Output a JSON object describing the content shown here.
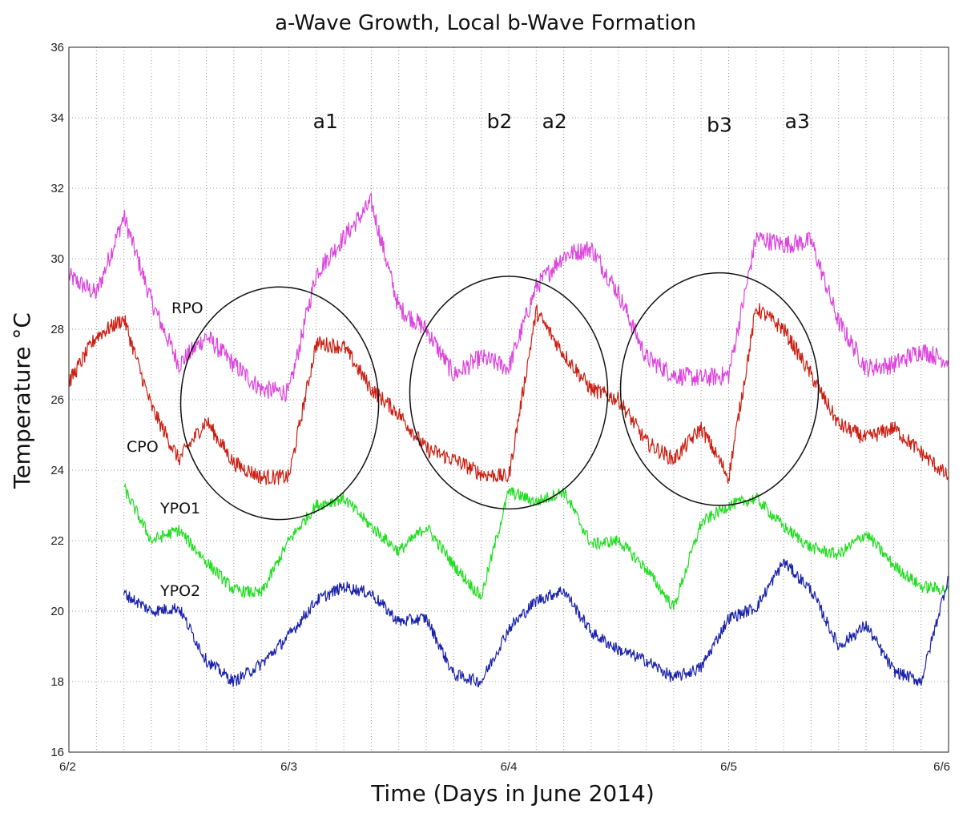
{
  "chart_data": {
    "type": "line",
    "title": "a-Wave Growth, Local b-Wave Formation",
    "xlabel": "Time (Days in June 2014)",
    "ylabel": "Temperature °C",
    "xlim": [
      "6/2",
      "6/6"
    ],
    "ylim": [
      16,
      36
    ],
    "x_ticks": [
      "6/2",
      "6/3",
      "6/4",
      "6/5",
      "6/6"
    ],
    "y_ticks": [
      "16",
      "18",
      "20",
      "22",
      "24",
      "26",
      "28",
      "30",
      "32",
      "34",
      "36"
    ],
    "grid": true,
    "series": [
      {
        "name": "RPO",
        "color": "#dd44dd",
        "x": [
          "6/2 00:00",
          "6/2 03:00",
          "6/2 06:00",
          "6/2 09:00",
          "6/2 12:00",
          "6/2 15:00",
          "6/2 18:00",
          "6/2 21:00",
          "6/3 00:00",
          "6/3 03:00",
          "6/3 06:00",
          "6/3 09:00",
          "6/3 12:00",
          "6/3 15:00",
          "6/3 18:00",
          "6/3 21:00",
          "6/4 00:00",
          "6/4 03:00",
          "6/4 06:00",
          "6/4 09:00",
          "6/4 12:00",
          "6/4 15:00",
          "6/4 18:00",
          "6/4 21:00",
          "6/5 00:00",
          "6/5 03:00",
          "6/5 06:00",
          "6/5 09:00",
          "6/5 12:00",
          "6/5 15:00",
          "6/5 18:00",
          "6/5 21:00",
          "6/6 00:00"
        ],
        "values": [
          29.5,
          29.0,
          31.2,
          28.8,
          27.0,
          27.8,
          27.0,
          26.3,
          26.2,
          29.6,
          30.6,
          31.6,
          28.6,
          28.0,
          26.7,
          27.2,
          26.9,
          29.2,
          30.1,
          30.3,
          29.0,
          27.2,
          26.7,
          26.6,
          26.7,
          30.6,
          30.4,
          30.5,
          28.2,
          26.9,
          27.0,
          27.4,
          27.1
        ]
      },
      {
        "name": "CPO",
        "color": "#cc1e12",
        "x": [
          "6/2 00:00",
          "6/2 03:00",
          "6/2 06:00",
          "6/2 09:00",
          "6/2 12:00",
          "6/2 15:00",
          "6/2 18:00",
          "6/2 21:00",
          "6/3 00:00",
          "6/3 03:00",
          "6/3 06:00",
          "6/3 09:00",
          "6/3 12:00",
          "6/3 15:00",
          "6/3 18:00",
          "6/3 21:00",
          "6/4 00:00",
          "6/4 03:00",
          "6/4 06:00",
          "6/4 09:00",
          "6/4 12:00",
          "6/4 15:00",
          "6/4 18:00",
          "6/4 21:00",
          "6/5 00:00",
          "6/5 03:00",
          "6/5 06:00",
          "6/5 09:00",
          "6/5 12:00",
          "6/5 15:00",
          "6/5 18:00",
          "6/5 21:00",
          "6/6 00:00"
        ],
        "values": [
          26.5,
          27.8,
          28.3,
          25.8,
          24.3,
          25.4,
          24.2,
          23.8,
          23.8,
          27.6,
          27.5,
          26.3,
          25.6,
          24.6,
          24.3,
          23.9,
          23.8,
          28.5,
          27.3,
          26.3,
          26.0,
          24.8,
          24.3,
          25.2,
          23.8,
          28.6,
          28.0,
          26.7,
          25.3,
          24.9,
          25.2,
          24.5,
          23.8
        ]
      },
      {
        "name": "YPO1",
        "color": "#22dd22",
        "x": [
          "6/2 06:00",
          "6/2 09:00",
          "6/2 12:00",
          "6/2 15:00",
          "6/2 18:00",
          "6/2 21:00",
          "6/3 00:00",
          "6/3 03:00",
          "6/3 06:00",
          "6/3 09:00",
          "6/3 12:00",
          "6/3 15:00",
          "6/3 18:00",
          "6/3 21:00",
          "6/4 00:00",
          "6/4 03:00",
          "6/4 06:00",
          "6/4 09:00",
          "6/4 12:00",
          "6/4 15:00",
          "6/4 18:00",
          "6/4 21:00",
          "6/5 00:00",
          "6/5 03:00",
          "6/5 06:00",
          "6/5 09:00",
          "6/5 12:00",
          "6/5 15:00",
          "6/5 18:00",
          "6/5 21:00",
          "6/6 00:00"
        ],
        "values": [
          23.5,
          22.0,
          22.3,
          21.4,
          20.6,
          20.5,
          22.0,
          23.0,
          23.2,
          22.4,
          21.7,
          22.4,
          21.3,
          20.4,
          23.4,
          23.1,
          23.4,
          21.9,
          22.0,
          21.2,
          20.1,
          22.5,
          23.0,
          23.2,
          22.4,
          21.8,
          21.6,
          22.2,
          21.3,
          20.7,
          20.6
        ]
      },
      {
        "name": "YPO2",
        "color": "#1a22aa",
        "x": [
          "6/2 06:00",
          "6/2 09:00",
          "6/2 12:00",
          "6/2 15:00",
          "6/2 18:00",
          "6/2 21:00",
          "6/3 00:00",
          "6/3 03:00",
          "6/3 06:00",
          "6/3 09:00",
          "6/3 12:00",
          "6/3 15:00",
          "6/3 18:00",
          "6/3 21:00",
          "6/4 00:00",
          "6/4 03:00",
          "6/4 06:00",
          "6/4 09:00",
          "6/4 12:00",
          "6/4 15:00",
          "6/4 18:00",
          "6/4 21:00",
          "6/5 00:00",
          "6/5 03:00",
          "6/5 06:00",
          "6/5 09:00",
          "6/5 12:00",
          "6/5 15:00",
          "6/5 18:00",
          "6/5 21:00",
          "6/6 00:00"
        ],
        "values": [
          20.5,
          20.0,
          20.1,
          18.6,
          18.0,
          18.5,
          19.3,
          20.3,
          20.7,
          20.5,
          19.7,
          19.8,
          18.2,
          18.0,
          19.5,
          20.3,
          20.6,
          19.4,
          18.9,
          18.6,
          18.1,
          18.4,
          19.8,
          20.1,
          21.4,
          20.6,
          19.0,
          19.6,
          18.3,
          18.0,
          21.0
        ]
      }
    ],
    "annotations": [
      {
        "text": "a1",
        "x": "6/3 04:00",
        "y": 33.7
      },
      {
        "text": "b2",
        "x": "6/3 23:00",
        "y": 33.7
      },
      {
        "text": "a2",
        "x": "6/4 05:00",
        "y": 33.7
      },
      {
        "text": "b3",
        "x": "6/4 23:00",
        "y": 33.6
      },
      {
        "text": "a3",
        "x": "6/5 07:30",
        "y": 33.7
      }
    ],
    "ellipses": [
      {
        "x_center": "6/2 23:00",
        "y_center": 25.9,
        "x_radius_hours": 10.8,
        "y_radius": 3.3
      },
      {
        "x_center": "6/4 00:00",
        "y_center": 26.2,
        "x_radius_hours": 10.8,
        "y_radius": 3.3
      },
      {
        "x_center": "6/4 23:00",
        "y_center": 26.3,
        "x_radius_hours": 10.8,
        "y_radius": 3.3
      }
    ]
  }
}
